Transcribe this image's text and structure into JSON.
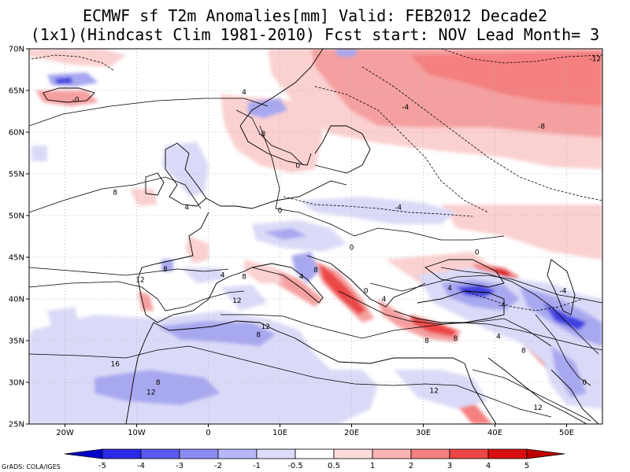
{
  "title": {
    "line1": "ECMWF sf T2m Anomalies[mm] Valid: FEB2012 Decade2",
    "line2": "(1x1)(Hindcast Clim 1981-2010) Fcst start: NOV  Lead Month= 3"
  },
  "credit": "GrADS: COLA/IGES",
  "map": {
    "lon_range": [
      -25,
      55
    ],
    "lat_range": [
      25,
      70
    ],
    "lon_ticks": [
      {
        "value": -20,
        "label": "20W"
      },
      {
        "value": -10,
        "label": "10W"
      },
      {
        "value": 0,
        "label": "0"
      },
      {
        "value": 10,
        "label": "10E"
      },
      {
        "value": 20,
        "label": "20E"
      },
      {
        "value": 30,
        "label": "30E"
      },
      {
        "value": 40,
        "label": "40E"
      },
      {
        "value": 50,
        "label": "50E"
      }
    ],
    "lat_ticks": [
      {
        "value": 25,
        "label": "25N"
      },
      {
        "value": 30,
        "label": "30N"
      },
      {
        "value": 35,
        "label": "35N"
      },
      {
        "value": 40,
        "label": "40N"
      },
      {
        "value": 45,
        "label": "45N"
      },
      {
        "value": 50,
        "label": "50N"
      },
      {
        "value": 55,
        "label": "55N"
      },
      {
        "value": 60,
        "label": "60N"
      },
      {
        "value": 65,
        "label": "65N"
      },
      {
        "value": 70,
        "label": "70N"
      }
    ],
    "grid": "dotted"
  },
  "colorbar": {
    "labels": [
      "-5",
      "-4",
      "-3",
      "-2",
      "-1",
      "-0.5",
      "0.5",
      "1",
      "2",
      "3",
      "4",
      "5"
    ],
    "colors": [
      "#0000c8",
      "#2a2ae6",
      "#5a5af0",
      "#8c8cf4",
      "#b8b8f8",
      "#dcdcfb",
      "#ffffff",
      "#fddcdc",
      "#fab4b4",
      "#f48080",
      "#ec4646",
      "#d81010",
      "#c00000"
    ]
  },
  "colors": {
    "warm_light": "#fbd0d0",
    "warm_mid": "#f5a0a0",
    "warm_strong": "#e85050",
    "cool_light": "#dadaf8",
    "cool_mid": "#a8a8f0",
    "cool_strong": "#4040e0"
  },
  "contour_labels": [
    {
      "text": "-12",
      "lon": 54.0,
      "lat": 68.8
    },
    {
      "text": "-8",
      "lon": 46.5,
      "lat": 60.7
    },
    {
      "text": "-4",
      "lon": 27.5,
      "lat": 63.0
    },
    {
      "text": "-4",
      "lon": 26.5,
      "lat": 51.0
    },
    {
      "text": "-4",
      "lon": 49.5,
      "lat": 41.0
    },
    {
      "text": "-4",
      "lon": 41.0,
      "lat": 39.3
    },
    {
      "text": "-8",
      "lon": 7.5,
      "lat": 59.8
    },
    {
      "text": "-0",
      "lon": -18.5,
      "lat": 63.9
    },
    {
      "text": "4",
      "lon": 5.0,
      "lat": 64.8
    },
    {
      "text": "4",
      "lon": -3.0,
      "lat": 51.0
    },
    {
      "text": "8",
      "lon": -13.0,
      "lat": 52.8
    },
    {
      "text": "0",
      "lon": 12.5,
      "lat": 56.0
    },
    {
      "text": "0",
      "lon": 10.0,
      "lat": 50.6
    },
    {
      "text": "0",
      "lon": 20.0,
      "lat": 46.2
    },
    {
      "text": "0",
      "lon": 37.5,
      "lat": 45.6
    },
    {
      "text": "0",
      "lon": 22.0,
      "lat": 41.0
    },
    {
      "text": "8",
      "lon": -6.0,
      "lat": 43.6
    },
    {
      "text": "4",
      "lon": 2.0,
      "lat": 42.9
    },
    {
      "text": "8",
      "lon": 5.0,
      "lat": 42.7
    },
    {
      "text": "8",
      "lon": 15.0,
      "lat": 43.5
    },
    {
      "text": "4",
      "lon": 13.0,
      "lat": 42.7
    },
    {
      "text": "4",
      "lon": 24.5,
      "lat": 40.0
    },
    {
      "text": "4",
      "lon": 33.7,
      "lat": 41.3
    },
    {
      "text": "12",
      "lon": -9.5,
      "lat": 42.3
    },
    {
      "text": "12",
      "lon": 4.0,
      "lat": 39.8
    },
    {
      "text": "12",
      "lon": 8.0,
      "lat": 36.7
    },
    {
      "text": "8",
      "lon": 7.0,
      "lat": 35.7
    },
    {
      "text": "8",
      "lon": 34.5,
      "lat": 35.3
    },
    {
      "text": "8",
      "lon": 30.5,
      "lat": 35.0
    },
    {
      "text": "4",
      "lon": 40.5,
      "lat": 35.5
    },
    {
      "text": "8",
      "lon": 44.0,
      "lat": 33.8
    },
    {
      "text": "16",
      "lon": -13.0,
      "lat": 32.2
    },
    {
      "text": "8",
      "lon": -7.0,
      "lat": 30.0
    },
    {
      "text": "12",
      "lon": -8.0,
      "lat": 28.8
    },
    {
      "text": "12",
      "lon": 31.5,
      "lat": 29.0
    },
    {
      "text": "12",
      "lon": 46.0,
      "lat": 27.0
    },
    {
      "text": "0",
      "lon": 52.5,
      "lat": 30.0
    }
  ]
}
